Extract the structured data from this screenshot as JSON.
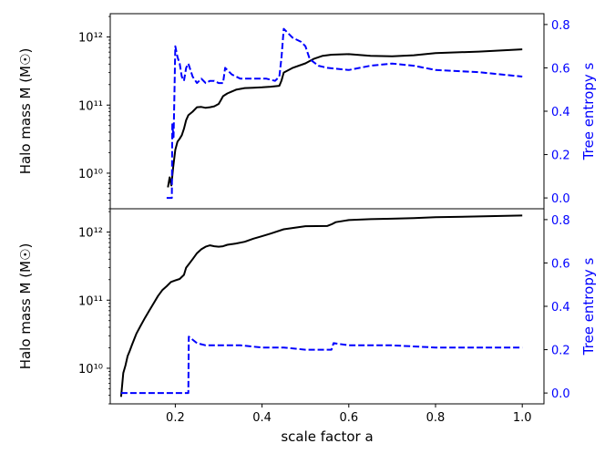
{
  "chart_data": [
    {
      "type": "line",
      "panel": "top",
      "xlim": [
        0.05,
        1.05
      ],
      "x_ticks": [],
      "y_left": {
        "label": "Halo mass M (M☉)",
        "scale": "log",
        "lim": [
          3000000000.0,
          2200000000000.0
        ],
        "ticks": [
          10000000000.0,
          100000000000.0,
          1000000000000.0
        ],
        "tick_labels": [
          "10¹⁰",
          "10¹¹",
          "10¹²"
        ]
      },
      "y_right": {
        "label": "Tree entropy s",
        "color": "#0000ff",
        "lim": [
          -0.05,
          0.85
        ],
        "ticks": [
          0.0,
          0.2,
          0.4,
          0.6,
          0.8
        ],
        "tick_labels": [
          "0.0",
          "0.2",
          "0.4",
          "0.6",
          "0.8"
        ]
      },
      "series": [
        {
          "axis": "left",
          "color": "#000000",
          "style": "solid",
          "x": [
            0.183,
            0.187,
            0.191,
            0.195,
            0.2,
            0.205,
            0.21,
            0.215,
            0.22,
            0.225,
            0.23,
            0.24,
            0.25,
            0.26,
            0.27,
            0.28,
            0.29,
            0.3,
            0.305,
            0.31,
            0.32,
            0.33,
            0.34,
            0.36,
            0.38,
            0.4,
            0.42,
            0.44,
            0.445,
            0.45,
            0.47,
            0.5,
            0.52,
            0.54,
            0.56,
            0.6,
            0.65,
            0.7,
            0.75,
            0.8,
            0.9,
            1.0
          ],
          "y": [
            6200000000.0,
            8700000000.0,
            6600000000.0,
            12000000000.0,
            22000000000.0,
            29000000000.0,
            32000000000.0,
            36000000000.0,
            45000000000.0,
            60000000000.0,
            71000000000.0,
            80000000000.0,
            93000000000.0,
            94000000000.0,
            91000000000.0,
            93000000000.0,
            96000000000.0,
            104000000000.0,
            118000000000.0,
            135000000000.0,
            148000000000.0,
            158000000000.0,
            168000000000.0,
            178000000000.0,
            180000000000.0,
            182000000000.0,
            186000000000.0,
            192000000000.0,
            230000000000.0,
            300000000000.0,
            350000000000.0,
            410000000000.0,
            480000000000.0,
            530000000000.0,
            550000000000.0,
            560000000000.0,
            530000000000.0,
            520000000000.0,
            540000000000.0,
            580000000000.0,
            610000000000.0,
            660000000000.0
          ]
        },
        {
          "axis": "right",
          "color": "#0000ff",
          "style": "dashed",
          "x": [
            0.18,
            0.192,
            0.193,
            0.196,
            0.198,
            0.2,
            0.205,
            0.21,
            0.215,
            0.22,
            0.225,
            0.23,
            0.24,
            0.25,
            0.26,
            0.27,
            0.28,
            0.29,
            0.3,
            0.31,
            0.315,
            0.32,
            0.33,
            0.35,
            0.38,
            0.41,
            0.43,
            0.44,
            0.445,
            0.45,
            0.47,
            0.49,
            0.5,
            0.51,
            0.53,
            0.55,
            0.6,
            0.65,
            0.7,
            0.75,
            0.8,
            0.9,
            1.0
          ],
          "y": [
            0.0,
            0.0,
            0.34,
            0.28,
            0.47,
            0.7,
            0.65,
            0.62,
            0.56,
            0.54,
            0.6,
            0.62,
            0.56,
            0.53,
            0.55,
            0.53,
            0.54,
            0.54,
            0.53,
            0.53,
            0.6,
            0.59,
            0.57,
            0.55,
            0.55,
            0.55,
            0.54,
            0.56,
            0.65,
            0.78,
            0.74,
            0.72,
            0.7,
            0.64,
            0.61,
            0.6,
            0.59,
            0.61,
            0.62,
            0.61,
            0.59,
            0.58,
            0.56
          ]
        }
      ]
    },
    {
      "type": "line",
      "panel": "bottom",
      "xlim": [
        0.05,
        1.05
      ],
      "xlabel": "scale factor a",
      "x_ticks": [
        0.2,
        0.4,
        0.6,
        0.8,
        1.0
      ],
      "x_tick_labels": [
        "0.2",
        "0.4",
        "0.6",
        "0.8",
        "1.0"
      ],
      "y_left": {
        "label": "Halo mass M (M☉)",
        "scale": "log",
        "lim": [
          3000000000.0,
          2200000000000.0
        ],
        "ticks": [
          10000000000.0,
          100000000000.0,
          1000000000000.0
        ],
        "tick_labels": [
          "10¹⁰",
          "10¹¹",
          "10¹²"
        ]
      },
      "y_right": {
        "label": "Tree entropy s",
        "color": "#0000ff",
        "lim": [
          -0.05,
          0.85
        ],
        "ticks": [
          0.0,
          0.2,
          0.4,
          0.6,
          0.8
        ],
        "tick_labels": [
          "0.0",
          "0.2",
          "0.4",
          "0.6",
          "0.8"
        ]
      },
      "series": [
        {
          "axis": "left",
          "color": "#000000",
          "style": "solid",
          "x": [
            0.075,
            0.08,
            0.085,
            0.09,
            0.095,
            0.1,
            0.11,
            0.12,
            0.13,
            0.14,
            0.15,
            0.16,
            0.17,
            0.18,
            0.19,
            0.2,
            0.21,
            0.22,
            0.225,
            0.23,
            0.24,
            0.25,
            0.26,
            0.27,
            0.28,
            0.29,
            0.3,
            0.31,
            0.32,
            0.34,
            0.36,
            0.38,
            0.4,
            0.42,
            0.45,
            0.5,
            0.55,
            0.56,
            0.57,
            0.6,
            0.65,
            0.7,
            0.75,
            0.8,
            0.9,
            1.0
          ],
          "y": [
            3800000000.0,
            8500000000.0,
            11000000000.0,
            15000000000.0,
            18000000000.0,
            22000000000.0,
            32000000000.0,
            42000000000.0,
            55000000000.0,
            70000000000.0,
            90000000000.0,
            115000000000.0,
            140000000000.0,
            160000000000.0,
            185000000000.0,
            195000000000.0,
            205000000000.0,
            235000000000.0,
            300000000000.0,
            330000000000.0,
            400000000000.0,
            490000000000.0,
            560000000000.0,
            610000000000.0,
            640000000000.0,
            620000000000.0,
            610000000000.0,
            620000000000.0,
            650000000000.0,
            680000000000.0,
            720000000000.0,
            800000000000.0,
            870000000000.0,
            950000000000.0,
            1100000000000.0,
            1220000000000.0,
            1230000000000.0,
            1300000000000.0,
            1400000000000.0,
            1500000000000.0,
            1550000000000.0,
            1570000000000.0,
            1600000000000.0,
            1650000000000.0,
            1700000000000.0,
            1750000000000.0
          ]
        },
        {
          "axis": "right",
          "color": "#0000ff",
          "style": "dashed",
          "x": [
            0.075,
            0.23,
            0.231,
            0.25,
            0.27,
            0.3,
            0.33,
            0.35,
            0.4,
            0.45,
            0.5,
            0.56,
            0.565,
            0.6,
            0.7,
            0.8,
            0.9,
            1.0
          ],
          "y": [
            0.0,
            0.0,
            0.26,
            0.23,
            0.22,
            0.22,
            0.22,
            0.22,
            0.21,
            0.21,
            0.2,
            0.2,
            0.23,
            0.22,
            0.22,
            0.21,
            0.21,
            0.21
          ]
        }
      ]
    }
  ]
}
